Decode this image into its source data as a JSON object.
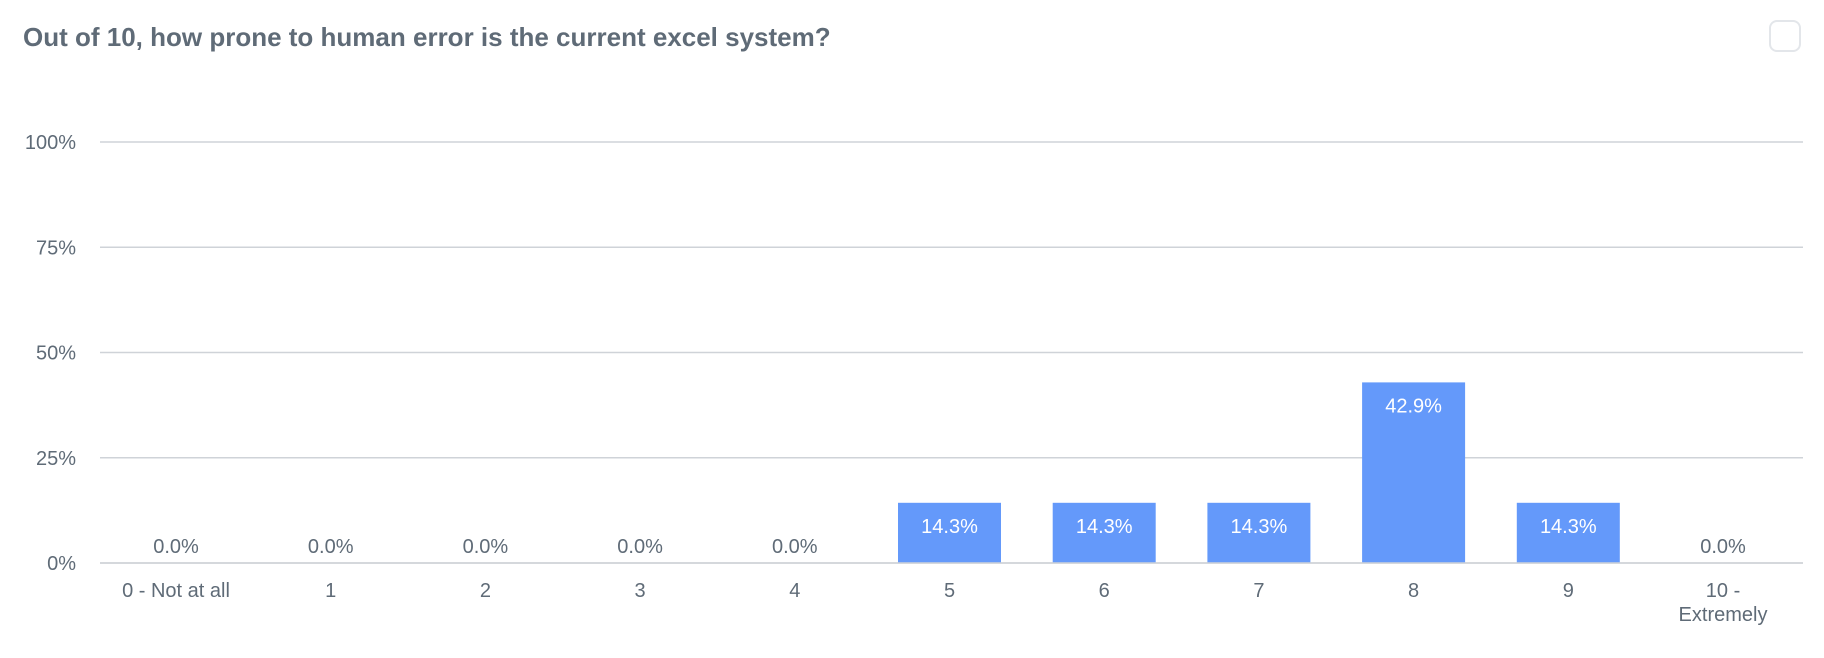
{
  "question": "Out of 10, how prone to human error is the current excel system?",
  "colors": {
    "bar": "#6499fa",
    "grid": "#cfd3d8",
    "text": "#5f6b77"
  },
  "chart_data": {
    "type": "bar",
    "title": "Out of 10, how prone to human error is the current excel system?",
    "categories": [
      "0 - Not at all",
      "1",
      "2",
      "3",
      "4",
      "5",
      "6",
      "7",
      "8",
      "9",
      "10 - Extremely"
    ],
    "values": [
      0.0,
      0.0,
      0.0,
      0.0,
      0.0,
      14.3,
      14.3,
      14.3,
      42.9,
      14.3,
      0.0
    ],
    "data_labels": [
      "0.0%",
      "0.0%",
      "0.0%",
      "0.0%",
      "0.0%",
      "14.3%",
      "14.3%",
      "14.3%",
      "42.9%",
      "14.3%",
      "0.0%"
    ],
    "y_ticks": [
      "0%",
      "25%",
      "50%",
      "75%",
      "100%"
    ],
    "y_tick_values": [
      0,
      25,
      50,
      75,
      100
    ],
    "ylim": [
      0,
      100
    ],
    "grid": true,
    "legend": "none"
  }
}
